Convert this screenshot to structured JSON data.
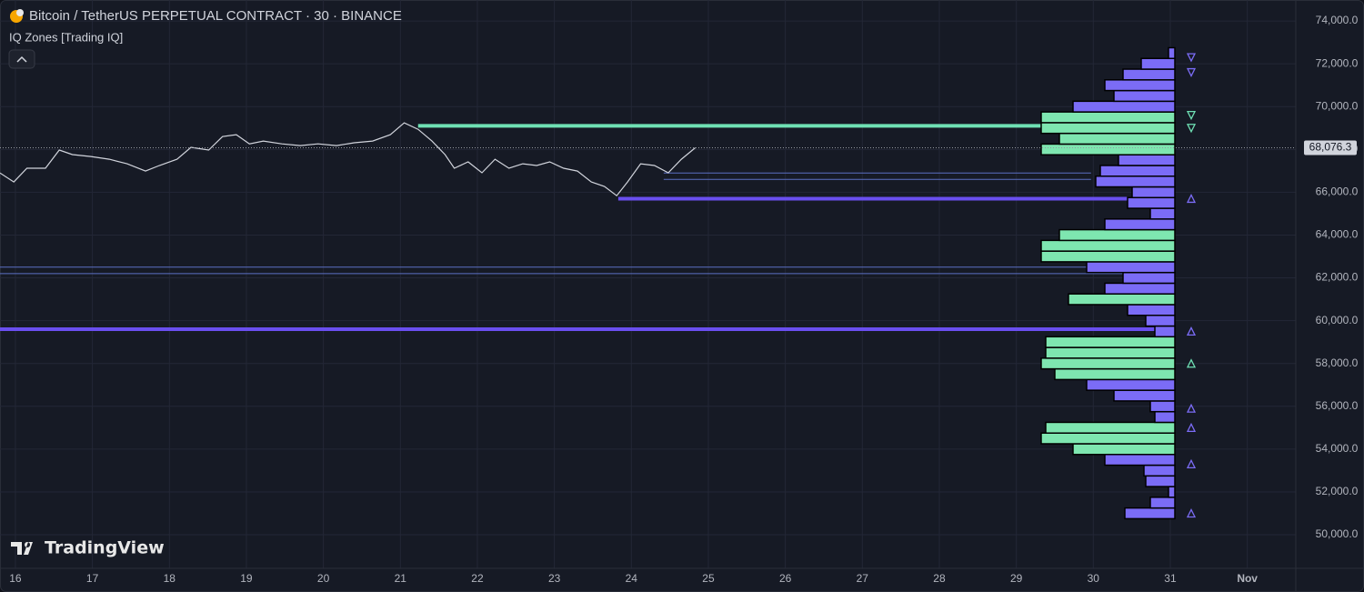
{
  "chart_data": {
    "type": "line",
    "title": "Bitcoin / TetherUS PERPETUAL CONTRACT · 30 · BINANCE",
    "indicator": "IQ Zones [Trading IQ]",
    "brand": "TradingView",
    "xlim": [
      15.8,
      32.63
    ],
    "ylim": [
      48430,
      74980
    ],
    "xticks": [
      16,
      17,
      18,
      19,
      20,
      21,
      22,
      23,
      24,
      25,
      26,
      27,
      28,
      29,
      30,
      31,
      {
        "value": 32,
        "label": "Nov"
      }
    ],
    "yticks": [
      {
        "value": 50000,
        "label": "50,000.0"
      },
      {
        "value": 52000,
        "label": "52,000.0"
      },
      {
        "value": 54000,
        "label": "54,000.0"
      },
      {
        "value": 56000,
        "label": "56,000.0"
      },
      {
        "value": 58000,
        "label": "58,000.0"
      },
      {
        "value": 60000,
        "label": "60,000.0"
      },
      {
        "value": 62000,
        "label": "62,000.0"
      },
      {
        "value": 64000,
        "label": "64,000.0"
      },
      {
        "value": 66000,
        "label": "66,000.0"
      },
      {
        "value": 68000,
        "label": "68,000.0"
      },
      {
        "value": 70000,
        "label": "70,000.0"
      },
      {
        "value": 72000,
        "label": "72,000.0"
      },
      {
        "value": 74000,
        "label": "74,000.0"
      }
    ],
    "grid": true,
    "last_price": {
      "value": 68076.3,
      "label": "68,076.3"
    },
    "series": [
      {
        "color": "#d1d4dc",
        "x": [
          15.8,
          15.98,
          16.15,
          16.39,
          16.57,
          16.74,
          16.98,
          17.22,
          17.45,
          17.69,
          17.87,
          18.1,
          18.28,
          18.51,
          18.69,
          18.87,
          19.04,
          19.22,
          19.46,
          19.7,
          19.93,
          20.17,
          20.4,
          20.64,
          20.87,
          21.05,
          21.23,
          21.41,
          21.58,
          21.7,
          21.88,
          22.06,
          22.23,
          22.41,
          22.59,
          22.77,
          22.94,
          23.12,
          23.3,
          23.48,
          23.65,
          23.81,
          23.95,
          24.12,
          24.3,
          24.48,
          24.65,
          24.83
        ],
        "values": [
          66900,
          66480,
          67120,
          67120,
          67970,
          67760,
          67670,
          67540,
          67330,
          66990,
          67250,
          67540,
          68100,
          67970,
          68600,
          68690,
          68260,
          68390,
          68260,
          68180,
          68260,
          68180,
          68310,
          68390,
          68690,
          69240,
          68940,
          68390,
          67760,
          67120,
          67420,
          66910,
          67540,
          67120,
          67330,
          67250,
          67420,
          67120,
          66990,
          66480,
          66270,
          65840,
          66480,
          67330,
          67250,
          66910,
          67540,
          68076.3
        ]
      }
    ],
    "profile": {
      "levels": [
        51000,
        51500,
        52000,
        52500,
        53000,
        53500,
        54000,
        54500,
        55000,
        55500,
        56000,
        56500,
        57000,
        57500,
        58000,
        58500,
        59000,
        59500,
        60000,
        60500,
        61000,
        61500,
        62000,
        62500,
        63000,
        63500,
        64000,
        64500,
        65000,
        65500,
        66000,
        66500,
        67000,
        67500,
        68000,
        68500,
        69000,
        69500,
        70000,
        70500,
        71000,
        71500,
        72000,
        72500
      ],
      "volumes": [
        55,
        27,
        7,
        32,
        34,
        77,
        112,
        147,
        142,
        22,
        27,
        67,
        97,
        132,
        147,
        142,
        142,
        22,
        32,
        52,
        117,
        77,
        57,
        97,
        147,
        147,
        127,
        77,
        27,
        52,
        47,
        87,
        82,
        62,
        147,
        127,
        147,
        147,
        112,
        67,
        77,
        57,
        37,
        7
      ],
      "colors": [
        "#7b6cf6",
        "#7b6cf6",
        "#7b6cf6",
        "#7b6cf6",
        "#7b6cf6",
        "#7b6cf6",
        "#7ee6b0",
        "#7ee6b0",
        "#7ee6b0",
        "#7b6cf6",
        "#7b6cf6",
        "#7b6cf6",
        "#7b6cf6",
        "#7ee6b0",
        "#7ee6b0",
        "#7ee6b0",
        "#7ee6b0",
        "#7b6cf6",
        "#7b6cf6",
        "#7b6cf6",
        "#7ee6b0",
        "#7b6cf6",
        "#7b6cf6",
        "#7b6cf6",
        "#7ee6b0",
        "#7ee6b0",
        "#7ee6b0",
        "#7b6cf6",
        "#7b6cf6",
        "#7b6cf6",
        "#7b6cf6",
        "#7b6cf6",
        "#7b6cf6",
        "#7b6cf6",
        "#7ee6b0",
        "#7ee6b0",
        "#7ee6b0",
        "#7ee6b0",
        "#7b6cf6",
        "#7b6cf6",
        "#7b6cf6",
        "#7b6cf6",
        "#7b6cf6",
        "#7b6cf6"
      ]
    },
    "zones": [
      {
        "price": 69100,
        "start": 21.23,
        "end": 29.5,
        "color": "#6fe0b4",
        "style": "thick"
      },
      {
        "price": 66900,
        "start": 24.42,
        "end": 29.97,
        "color": "#5b6fc4",
        "style": "thin"
      },
      {
        "price": 66600,
        "start": 24.42,
        "end": 29.97,
        "color": "#5b6fc4",
        "style": "thin"
      },
      {
        "price": 65700,
        "start": 23.83,
        "end": 30.44,
        "color": "#6a4ff0",
        "style": "thick"
      },
      {
        "price": 62500,
        "start": 15.8,
        "end": 30.44,
        "color": "#5b6fc4",
        "style": "thin"
      },
      {
        "price": 62200,
        "start": 15.8,
        "end": 30.44,
        "color": "#5b6fc4",
        "style": "thin"
      },
      {
        "price": 59600,
        "start": 15.8,
        "end": 31.03,
        "color": "#6a4ff0",
        "style": "thick"
      }
    ],
    "markers": [
      {
        "price": 72300,
        "direction": "down",
        "color": "#7b6cf6"
      },
      {
        "price": 71600,
        "direction": "down",
        "color": "#7b6cf6"
      },
      {
        "price": 69600,
        "direction": "down",
        "color": "#6fe0b4"
      },
      {
        "price": 69000,
        "direction": "down",
        "color": "#6fe0b4"
      },
      {
        "price": 65700,
        "direction": "up",
        "color": "#7b6cf6"
      },
      {
        "price": 59500,
        "direction": "up",
        "color": "#7b6cf6"
      },
      {
        "price": 58000,
        "direction": "up",
        "color": "#6fe0b4"
      },
      {
        "price": 55900,
        "direction": "up",
        "color": "#7b6cf6"
      },
      {
        "price": 55000,
        "direction": "up",
        "color": "#7b6cf6"
      },
      {
        "price": 53300,
        "direction": "up",
        "color": "#7b6cf6"
      },
      {
        "price": 51000,
        "direction": "up",
        "color": "#7b6cf6"
      }
    ]
  }
}
